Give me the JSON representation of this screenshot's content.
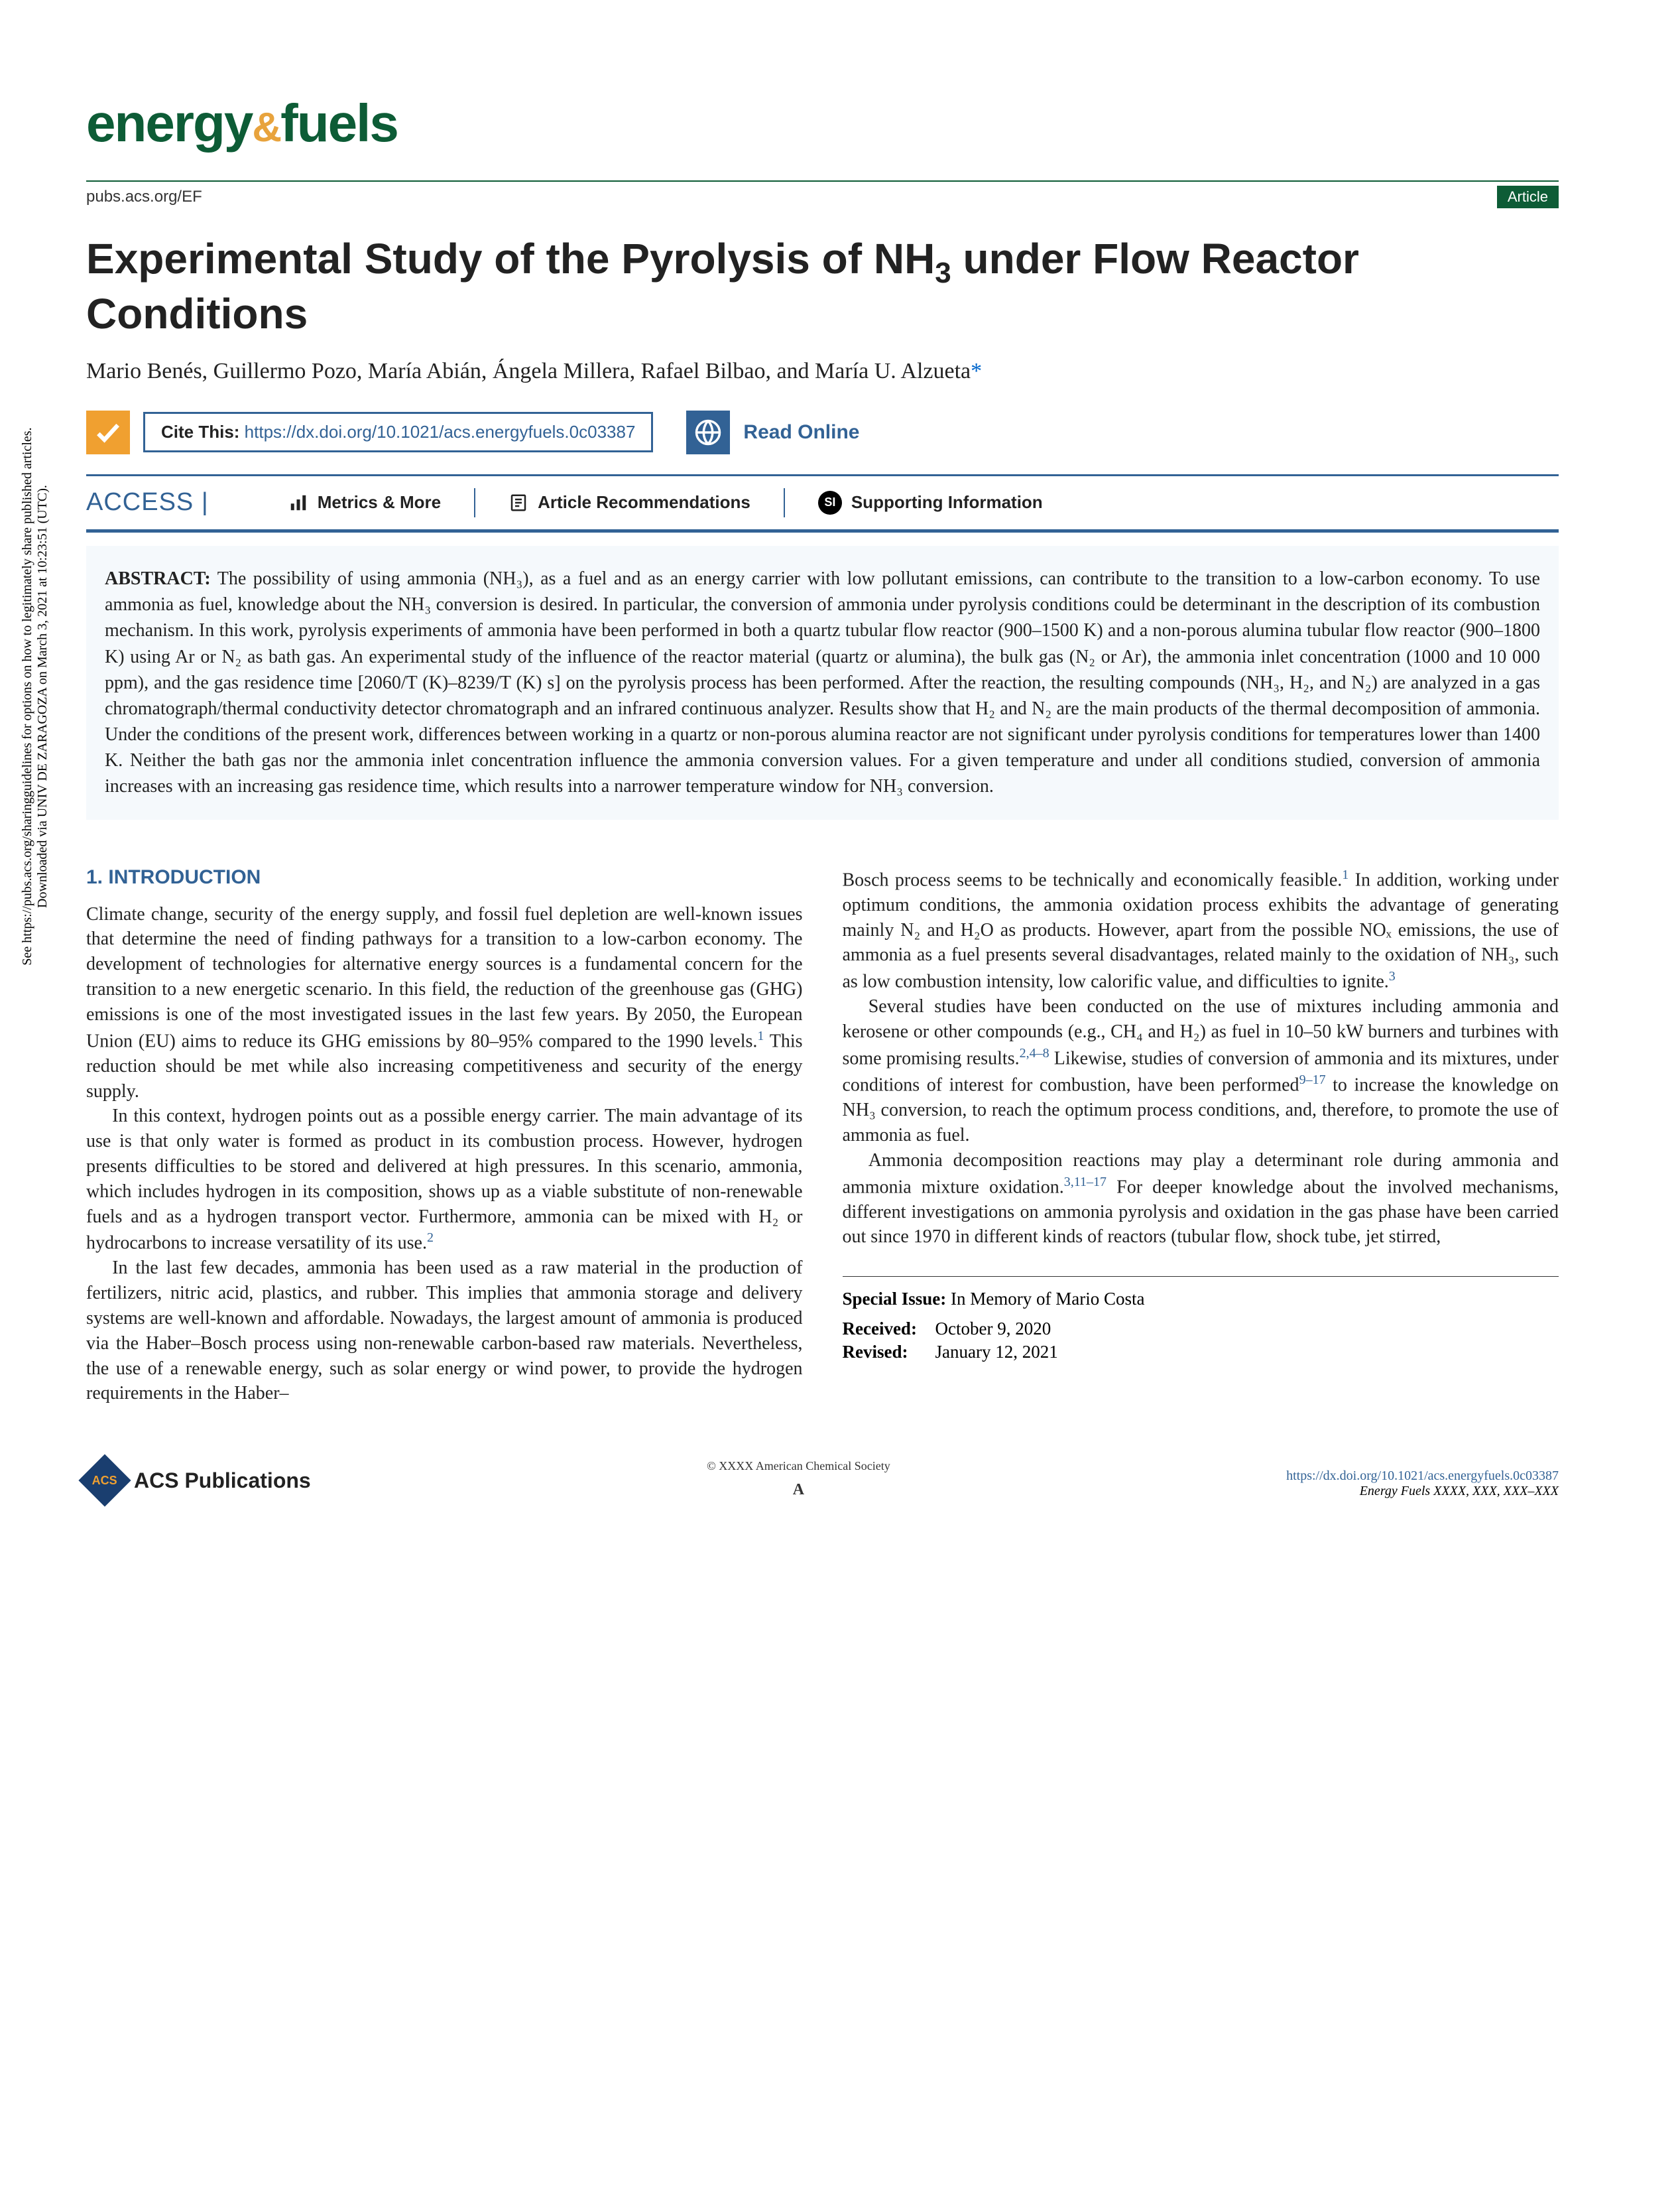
{
  "journal_name_1": "energy",
  "journal_amp": "&",
  "journal_name_2": "fuels",
  "pubs_url": "pubs.acs.org/EF",
  "article_badge": "Article",
  "title_html": "Experimental Study of the Pyrolysis of NH<sub>3</sub> under Flow Reactor Conditions",
  "authors_html": "Mario Benés, Guillermo Pozo, María Abián, Ángela Millera, Rafael Bilbao, and María U. Alzueta<span class=\"asterisk\">*</span>",
  "cite_label": "Cite This: ",
  "cite_doi": "https://dx.doi.org/10.1021/acs.energyfuels.0c03387",
  "read_online": "Read Online",
  "access_label": "ACCESS |",
  "metrics": "Metrics & More",
  "recommendations": "Article Recommendations",
  "supporting": "Supporting Information",
  "abstract_label": "ABSTRACT:",
  "abstract_text": " The possibility of using ammonia (NH₃), as a fuel and as an energy carrier with low pollutant emissions, can contribute to the transition to a low-carbon economy. To use ammonia as fuel, knowledge about the NH₃ conversion is desired. In particular, the conversion of ammonia under pyrolysis conditions could be determinant in the description of its combustion mechanism. In this work, pyrolysis experiments of ammonia have been performed in both a quartz tubular flow reactor (900–1500 K) and a non-porous alumina tubular flow reactor (900–1800 K) using Ar or N₂ as bath gas. An experimental study of the influence of the reactor material (quartz or alumina), the bulk gas (N₂ or Ar), the ammonia inlet concentration (1000 and 10 000 ppm), and the gas residence time [2060/T (K)–8239/T (K) s] on the pyrolysis process has been performed. After the reaction, the resulting compounds (NH₃, H₂, and N₂) are analyzed in a gas chromatograph/thermal conductivity detector chromatograph and an infrared continuous analyzer. Results show that H₂ and N₂ are the main products of the thermal decomposition of ammonia. Under the conditions of the present work, differences between working in a quartz or non-porous alumina reactor are not significant under pyrolysis conditions for temperatures lower than 1400 K. Neither the bath gas nor the ammonia inlet concentration influence the ammonia conversion values. For a given temperature and under all conditions studied, conversion of ammonia increases with an increasing gas residence time, which results into a narrower temperature window for NH₃ conversion.",
  "intro_heading": "1. INTRODUCTION",
  "col1_p1": "Climate change, security of the energy supply, and fossil fuel depletion are well-known issues that determine the need of finding pathways for a transition to a low-carbon economy. The development of technologies for alternative energy sources is a fundamental concern for the transition to a new energetic scenario. In this field, the reduction of the greenhouse gas (GHG) emissions is one of the most investigated issues in the last few years. By 2050, the European Union (EU) aims to reduce its GHG emissions by 80–95% compared to the 1990 levels.<sup>1</sup> This reduction should be met while also increasing competitiveness and security of the energy supply.",
  "col1_p2": "In this context, hydrogen points out as a possible energy carrier. The main advantage of its use is that only water is formed as product in its combustion process. However, hydrogen presents difficulties to be stored and delivered at high pressures. In this scenario, ammonia, which includes hydrogen in its composition, shows up as a viable substitute of non-renewable fuels and as a hydrogen transport vector. Furthermore, ammonia can be mixed with H₂ or hydrocarbons to increase versatility of its use.<sup>2</sup>",
  "col1_p3": "In the last few decades, ammonia has been used as a raw material in the production of fertilizers, nitric acid, plastics, and rubber. This implies that ammonia storage and delivery systems are well-known and affordable. Nowadays, the largest amount of ammonia is produced via the Haber–Bosch process using non-renewable carbon-based raw materials. Nevertheless, the use of a renewable energy, such as solar energy or wind power, to provide the hydrogen requirements in the Haber–",
  "col2_p1": "Bosch process seems to be technically and economically feasible.<sup>1</sup> In addition, working under optimum conditions, the ammonia oxidation process exhibits the advantage of generating mainly N₂ and H₂O as products. However, apart from the possible NOₓ emissions, the use of ammonia as a fuel presents several disadvantages, related mainly to the oxidation of NH₃, such as low combustion intensity, low calorific value, and difficulties to ignite.<sup>3</sup>",
  "col2_p2": "Several studies have been conducted on the use of mixtures including ammonia and kerosene or other compounds (e.g., CH₄ and H₂) as fuel in 10–50 kW burners and turbines with some promising results.<sup>2,4–8</sup> Likewise, studies of conversion of ammonia and its mixtures, under conditions of interest for combustion, have been performed<sup>9–17</sup> to increase the knowledge on NH₃ conversion, to reach the optimum process conditions, and, therefore, to promote the use of ammonia as fuel.",
  "col2_p3": "Ammonia decomposition reactions may play a determinant role during ammonia and ammonia mixture oxidation.<sup>3,11–17</sup> For deeper knowledge about the involved mechanisms, different investigations on ammonia pyrolysis and oxidation in the gas phase have been carried out since 1970 in different kinds of reactors (tubular flow, shock tube, jet stirred,",
  "special_issue_label": "Special Issue:",
  "special_issue": " In Memory of Mario Costa",
  "received_label": "Received:",
  "received": "October 9, 2020",
  "revised_label": "Revised:",
  "revised": "January 12, 2021",
  "download_notice_1": "Downloaded via UNIV DE ZARAGOZA on March 3, 2021 at 10:23:51 (UTC).",
  "download_notice_2": "See https://pubs.acs.org/sharingguidelines for options on how to legitimately share published articles.",
  "acs_pub": "ACS Publications",
  "copyright": "© XXXX American Chemical Society",
  "page_letter": "A",
  "footer_doi": "https://dx.doi.org/10.1021/acs.energyfuels.0c03387",
  "footer_ef": "Energy Fuels XXXX, XXX, XXX–XXX"
}
